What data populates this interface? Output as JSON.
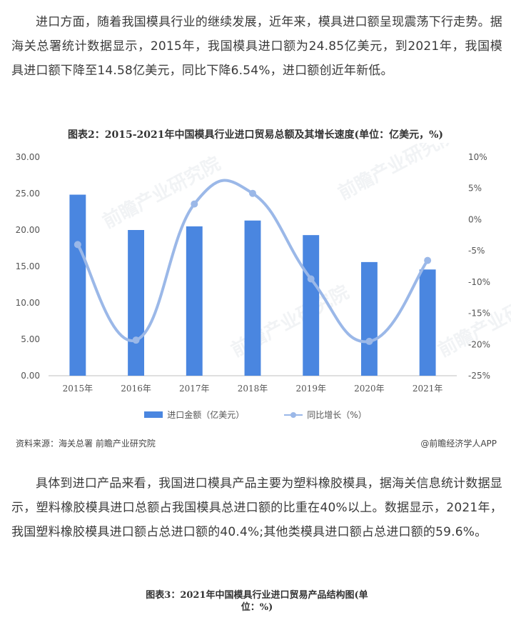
{
  "paragraphs": {
    "p1": "进口方面，随着我国模具行业的继续发展，近年来，模具进口额呈现震荡下行走势。据海关总署统计数据显示，2015年，我国模具进口额为24.85亿美元，到2021年，我国模具进口额下降至14.58亿美元，同比下降6.54%，进口额创近年新低。",
    "p2": "具体到进口产品来看，我国进口模具产品主要为塑料橡胶模具，据海关信息统计数据显示，塑料橡胶模具进口总额占我国模具总进口额的比重在40%以上。数据显示，2021年，我国塑料橡胶模具进口额占总进口额的40.4%;其他类模具进口额占总进口额的59.6%。"
  },
  "figure2": {
    "title": "图表2：2015-2021年中国模具行业进口贸易总额及其增长速度(单位：亿美元，%)",
    "source": "资料来源：海关总署 前瞻产业研究院",
    "credit": "@前瞻经济学人APP",
    "watermark": "前瞻产业研究院"
  },
  "figure3": {
    "title_line1": "图表3：2021年中国模具行业进口贸易产品结构图(单",
    "title_line2": "位：%)"
  },
  "chart_data": {
    "type": "bar",
    "categories": [
      "2015年",
      "2016年",
      "2017年",
      "2018年",
      "2019年",
      "2020年",
      "2021年"
    ],
    "series": [
      {
        "name": "进口金额（亿美元）",
        "type": "bar",
        "axis": "left",
        "color": "#4a86e0",
        "values": [
          24.85,
          20.0,
          20.5,
          21.3,
          19.3,
          15.6,
          14.58
        ]
      },
      {
        "name": "同比增长（%）",
        "type": "line",
        "axis": "right",
        "color": "#9bb8e8",
        "values": [
          -4.0,
          -19.3,
          2.5,
          4.2,
          -9.5,
          -19.5,
          -6.54
        ]
      }
    ],
    "y_left": {
      "min": 0,
      "max": 30,
      "ticks": [
        "0.00",
        "5.00",
        "10.00",
        "15.00",
        "20.00",
        "25.00",
        "30.00"
      ]
    },
    "y_right": {
      "min": -25,
      "max": 10,
      "ticks": [
        "-25%",
        "-20%",
        "-15%",
        "-10%",
        "-5%",
        "0%",
        "5%",
        "10%"
      ]
    },
    "line_smooth": true,
    "grid": false,
    "legend_position": "bottom"
  }
}
